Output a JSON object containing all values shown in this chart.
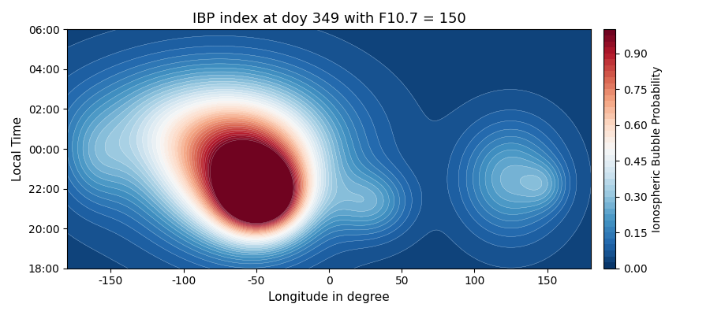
{
  "title": "IBP index at doy 349 with F10.7 = 150",
  "xlabel": "Longitude in degree",
  "ylabel": "Local Time",
  "colorbar_label": "Ionospheric Bubble Probability",
  "lon_range": [
    -180,
    180
  ],
  "lt_range": [
    18,
    30
  ],
  "vmin": 0.0,
  "vmax": 1.0,
  "n_levels": 40,
  "ytick_values": [
    18,
    20,
    22,
    24,
    26,
    28,
    30
  ],
  "ytick_labels": [
    "18:00",
    "20:00",
    "22:00",
    "00:00",
    "02:00",
    "04:00",
    "06:00"
  ],
  "figsize": [
    9.0,
    4.0
  ],
  "dpi": 100,
  "gaussians": [
    {
      "lon0": -48,
      "lt0": 21.6,
      "slon": 18,
      "slt": 1.2,
      "amp": 0.92
    },
    {
      "lon0": -55,
      "lt0": 22.5,
      "slon": 30,
      "slt": 2.0,
      "amp": 0.55
    },
    {
      "lon0": -65,
      "lt0": 23.5,
      "slon": 45,
      "slt": 2.5,
      "amp": 0.32
    },
    {
      "lon0": -80,
      "lt0": 24.5,
      "slon": 55,
      "slt": 2.2,
      "amp": 0.2
    },
    {
      "lon0": -100,
      "lt0": 25.5,
      "slon": 50,
      "slt": 1.8,
      "amp": 0.12
    },
    {
      "lon0": 28,
      "lt0": 21.3,
      "slon": 18,
      "slt": 1.1,
      "amp": 0.18
    },
    {
      "lon0": 125,
      "lt0": 22.5,
      "slon": 22,
      "slt": 1.8,
      "amp": 0.22
    },
    {
      "lon0": 148,
      "lt0": 22.2,
      "slon": 10,
      "slt": 0.8,
      "amp": 0.1
    },
    {
      "lon0": -160,
      "lt0": 23.5,
      "slon": 15,
      "slt": 1.5,
      "amp": 0.1
    }
  ],
  "background": 0.04
}
